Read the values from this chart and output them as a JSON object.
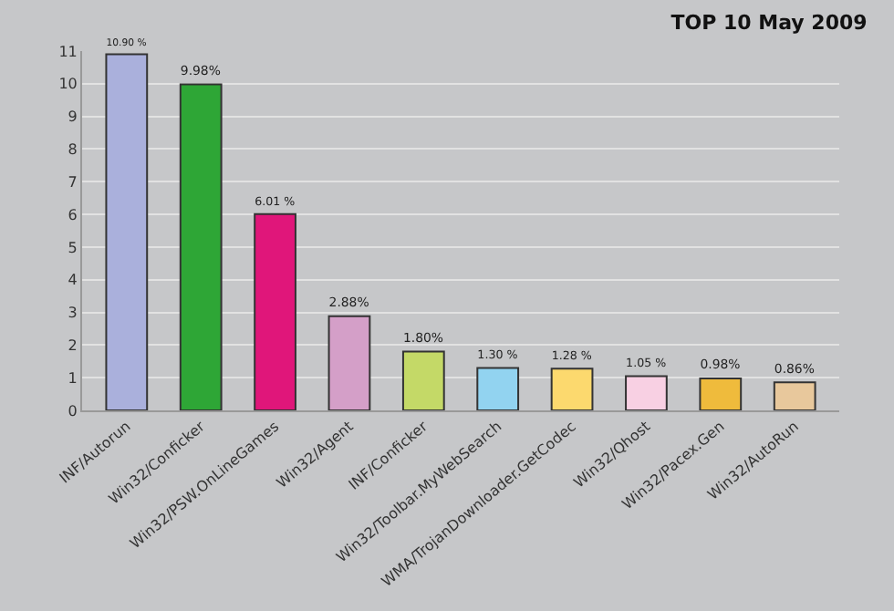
{
  "chart_data": {
    "type": "bar",
    "title": "TOP 10 May 2009",
    "categories": [
      "INF/Autorun",
      "Win32/Conficker",
      "Win32/PSW.OnLineGames",
      "Win32/Agent",
      "INF/Conficker",
      "Win32/Toolbar.MyWebSearch",
      "WMA/TrojanDownloader.GetCodec",
      "Win32/Qhost",
      "Win32/Pacex.Gen",
      "Win32/AutoRun"
    ],
    "values": [
      10.9,
      9.98,
      6.01,
      2.88,
      1.8,
      1.3,
      1.28,
      1.05,
      0.98,
      0.86
    ],
    "value_labels": [
      "10.90 %",
      "9.98%",
      "6.01 %",
      "2.88%",
      "1.80%",
      "1.30 %",
      "1.28 %",
      "1.05 %",
      "0.98%",
      "0.86%"
    ],
    "colors": [
      "#aab0dc",
      "#2ea636",
      "#e0167a",
      "#d49fc8",
      "#c4d967",
      "#92d3f0",
      "#fcd96e",
      "#f8d0e3",
      "#efbb3c",
      "#e8c89c"
    ],
    "ylim": [
      0,
      11
    ],
    "yticks": [
      0,
      1,
      2,
      3,
      4,
      5,
      6,
      7,
      8,
      9,
      10,
      11
    ],
    "grid": "y"
  }
}
